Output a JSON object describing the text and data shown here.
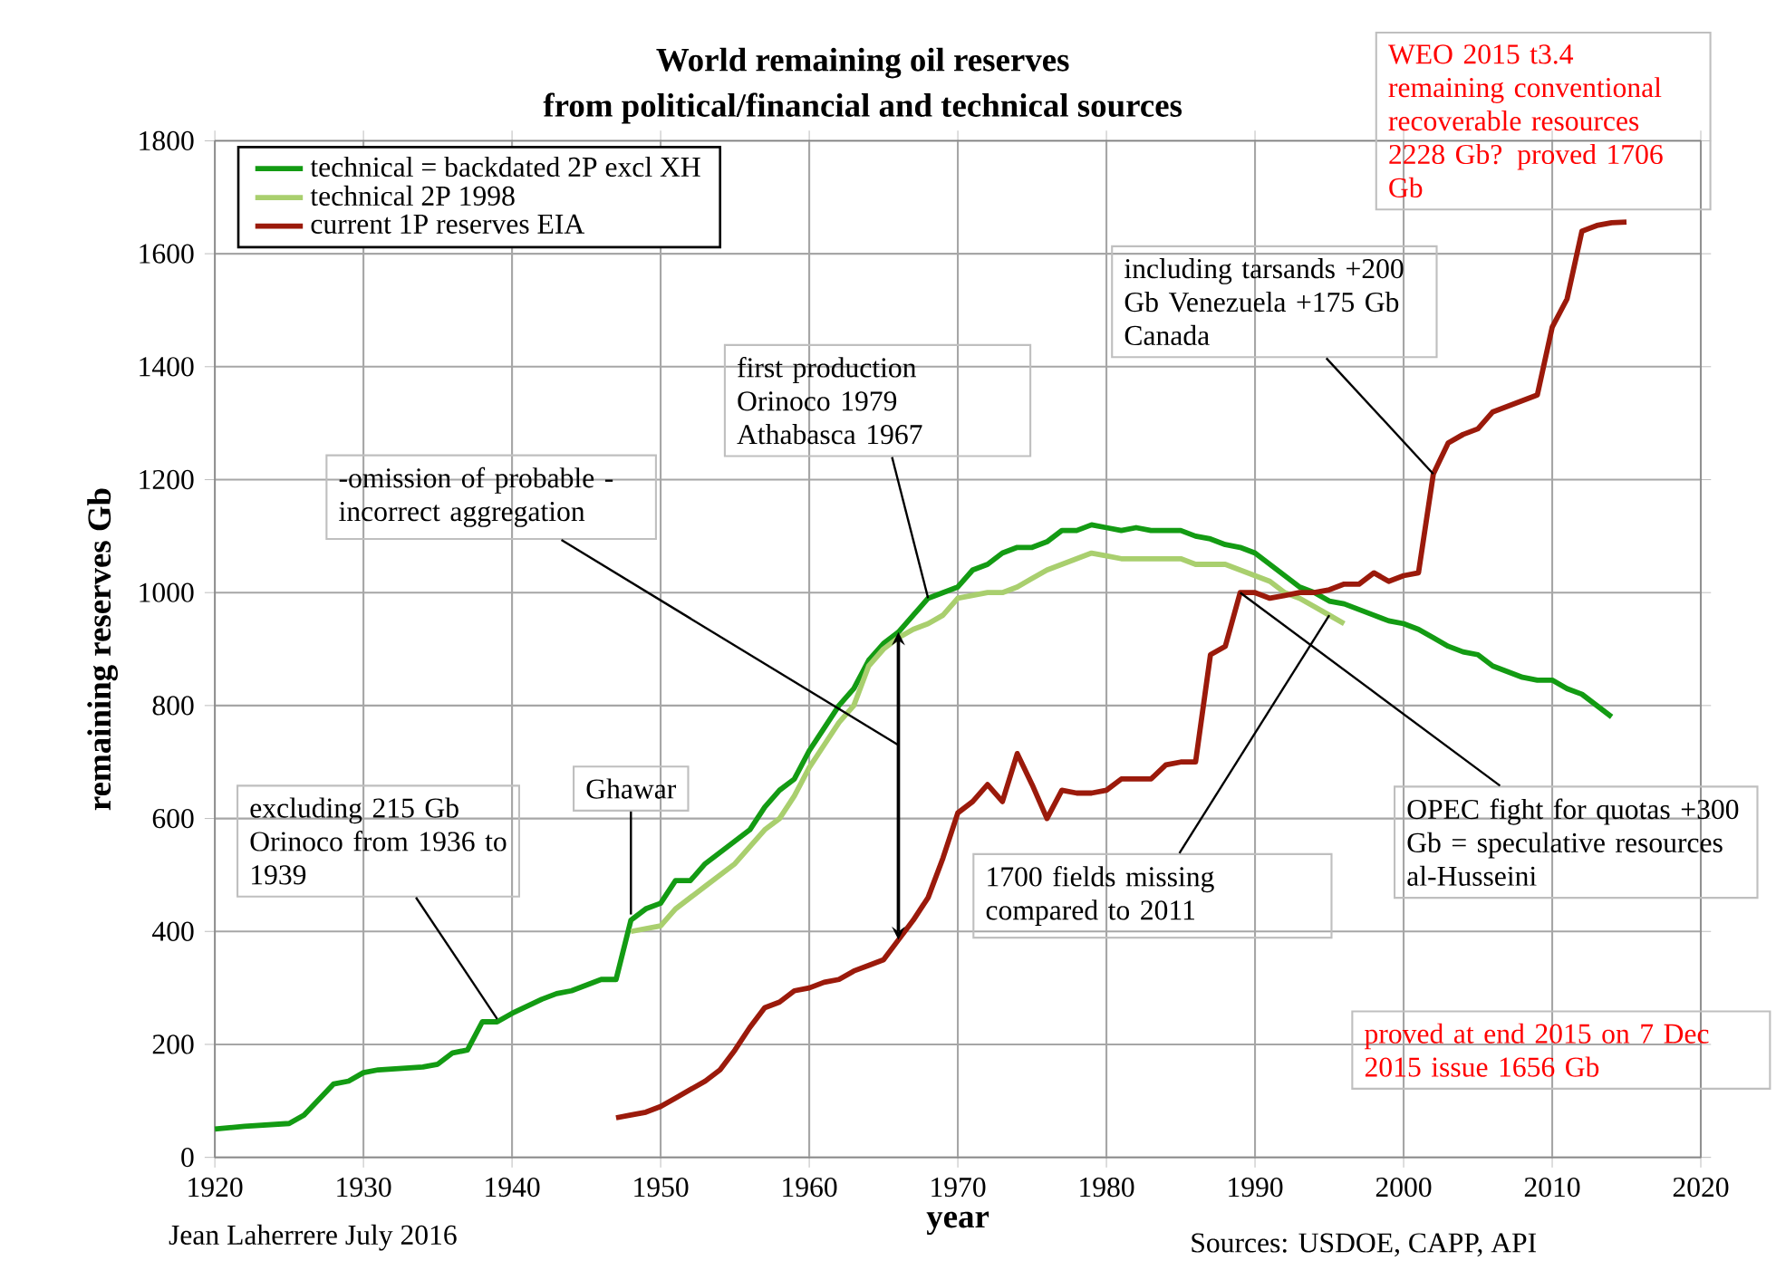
{
  "chart_data": {
    "type": "line",
    "title": "World remaining oil reserves",
    "subtitle": "from political/financial and technical sources",
    "xlabel": "year",
    "ylabel": "remaining reserves Gb",
    "xlim": [
      1920,
      2020
    ],
    "xticks": [
      1920,
      1930,
      1940,
      1950,
      1960,
      1970,
      1980,
      1990,
      2000,
      2010,
      2020
    ],
    "ylim": [
      0,
      1800
    ],
    "yticks": [
      0,
      200,
      400,
      600,
      800,
      1000,
      1200,
      1400,
      1600,
      1800
    ],
    "grid": true,
    "legend": "top left",
    "line_style": "solid",
    "series": [
      {
        "name": "technical = backdated 2P excl XH",
        "color": "#139b13",
        "x": [
          1920,
          1922,
          1925,
          1926,
          1928,
          1929,
          1930,
          1931,
          1934,
          1935,
          1936,
          1937,
          1938,
          1939,
          1940,
          1942,
          1943,
          1944,
          1945,
          1946,
          1947,
          1948,
          1949,
          1950,
          1951,
          1952,
          1953,
          1954,
          1955,
          1956,
          1957,
          1958,
          1959,
          1960,
          1961,
          1962,
          1963,
          1964,
          1965,
          1966,
          1967,
          1968,
          1969,
          1970,
          1971,
          1972,
          1973,
          1974,
          1975,
          1976,
          1977,
          1978,
          1979,
          1980,
          1981,
          1982,
          1983,
          1984,
          1985,
          1986,
          1987,
          1988,
          1989,
          1990,
          1991,
          1992,
          1993,
          1994,
          1995,
          1996,
          1997,
          1998,
          1999,
          2000,
          2001,
          2002,
          2003,
          2004,
          2005,
          2006,
          2007,
          2008,
          2009,
          2010,
          2011,
          2012,
          2013,
          2014
        ],
        "values": [
          50,
          55,
          60,
          75,
          130,
          135,
          150,
          155,
          160,
          165,
          185,
          190,
          240,
          240,
          255,
          280,
          290,
          295,
          305,
          315,
          315,
          420,
          440,
          450,
          490,
          490,
          520,
          540,
          560,
          580,
          620,
          650,
          670,
          720,
          760,
          800,
          830,
          880,
          910,
          930,
          960,
          990,
          1000,
          1010,
          1040,
          1050,
          1070,
          1080,
          1080,
          1090,
          1110,
          1110,
          1120,
          1115,
          1110,
          1115,
          1110,
          1110,
          1110,
          1100,
          1095,
          1085,
          1080,
          1070,
          1050,
          1030,
          1010,
          1000,
          985,
          980,
          970,
          960,
          950,
          945,
          935,
          920,
          905,
          895,
          890,
          870,
          860,
          850,
          845,
          845,
          830,
          820,
          800,
          780
        ]
      },
      {
        "name": "technical 2P 1998",
        "color": "#a9cf6e",
        "x": [
          1948,
          1950,
          1951,
          1953,
          1955,
          1957,
          1958,
          1959,
          1960,
          1961,
          1962,
          1963,
          1964,
          1965,
          1966,
          1967,
          1968,
          1969,
          1970,
          1972,
          1973,
          1974,
          1975,
          1976,
          1977,
          1978,
          1979,
          1980,
          1981,
          1985,
          1986,
          1988,
          1989,
          1990,
          1991,
          1992,
          1993,
          1994,
          1995,
          1996
        ],
        "values": [
          400,
          410,
          440,
          480,
          520,
          580,
          600,
          640,
          690,
          730,
          770,
          800,
          870,
          900,
          920,
          935,
          945,
          960,
          990,
          1000,
          1000,
          1010,
          1025,
          1040,
          1050,
          1060,
          1070,
          1065,
          1060,
          1060,
          1050,
          1050,
          1040,
          1030,
          1020,
          1000,
          990,
          975,
          960,
          945
        ]
      },
      {
        "name": "current 1P reserves EIA",
        "color": "#9b1a0b",
        "x": [
          1947,
          1948,
          1949,
          1950,
          1951,
          1952,
          1953,
          1954,
          1955,
          1956,
          1957,
          1958,
          1959,
          1960,
          1961,
          1962,
          1963,
          1964,
          1965,
          1966,
          1967,
          1968,
          1969,
          1970,
          1971,
          1972,
          1973,
          1974,
          1975,
          1976,
          1977,
          1978,
          1979,
          1980,
          1981,
          1982,
          1983,
          1984,
          1985,
          1986,
          1987,
          1988,
          1989,
          1990,
          1991,
          1992,
          1993,
          1994,
          1995,
          1996,
          1997,
          1998,
          1999,
          2000,
          2001,
          2002,
          2003,
          2004,
          2005,
          2006,
          2007,
          2008,
          2009,
          2010,
          2011,
          2012,
          2013,
          2014,
          2015
        ],
        "values": [
          70,
          75,
          80,
          90,
          105,
          120,
          135,
          155,
          190,
          230,
          265,
          275,
          295,
          300,
          310,
          315,
          330,
          340,
          350,
          385,
          420,
          460,
          530,
          610,
          630,
          660,
          630,
          715,
          660,
          600,
          650,
          645,
          645,
          650,
          670,
          670,
          670,
          695,
          700,
          700,
          890,
          905,
          1000,
          1000,
          990,
          995,
          1000,
          1000,
          1005,
          1015,
          1015,
          1035,
          1020,
          1030,
          1035,
          1210,
          1265,
          1280,
          1290,
          1320,
          1330,
          1340,
          1350,
          1470,
          1520,
          1640,
          1650,
          1655,
          1656
        ]
      }
    ],
    "annotations": [
      {
        "text": "excluding 215 Gb Orinoco from 1936 to 1939",
        "x": 1939,
        "y": 245
      },
      {
        "text": "Ghawar",
        "x": 1948,
        "y": 430
      },
      "-omission of probable -incorrect aggregation",
      {
        "text": "first production Orinoco 1979 Athabasca 1967",
        "x": 1968,
        "y": 990
      },
      {
        "text": "including tarsands +200 Gb Venezuela +175 Gb Canada",
        "x": 2002,
        "y": 1210
      },
      {
        "text": "1700 fields missing compared to 2011",
        "x": 1995,
        "y": 960
      },
      {
        "text": "OPEC fight for quotas +300 Gb = speculative resources al-Husseini",
        "x": 1989,
        "y": 1000
      },
      "WEO 2015 t3.4 remaining conventional recoverable resources 2228 Gb? proved 1706 Gb",
      "proved at end 2015 on 7 Dec 2015 issue 1656 Gb",
      "Jean Laherrere July 2016",
      "Sources: USDOE, CAPP, API"
    ]
  }
}
